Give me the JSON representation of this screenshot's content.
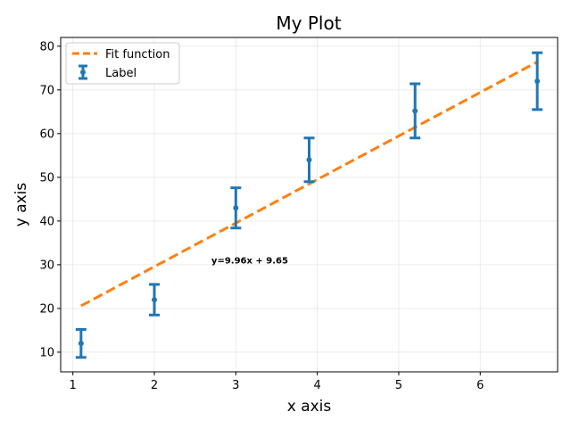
{
  "chart_data": {
    "type": "scatter",
    "title": "My Plot",
    "xlabel": "x axis",
    "ylabel": "y axis",
    "xlim": [
      0.85,
      6.95
    ],
    "ylim": [
      5.5,
      82
    ],
    "xticks": [
      1,
      2,
      3,
      4,
      5,
      6
    ],
    "yticks": [
      10,
      20,
      30,
      40,
      50,
      60,
      70,
      80
    ],
    "grid": true,
    "legend_position": "top-left",
    "series": [
      {
        "name": "Label",
        "kind": "errorbar",
        "color": "#1f77b4",
        "x": [
          1.1,
          2.0,
          3.0,
          3.9,
          5.2,
          6.7
        ],
        "y": [
          12.0,
          22.0,
          43.0,
          54.0,
          65.2,
          72.0
        ],
        "yerr": [
          3.2,
          3.5,
          4.6,
          5.0,
          6.2,
          6.5
        ]
      },
      {
        "name": "Fit function",
        "kind": "line",
        "style": "dashed",
        "color": "#ff7f0e",
        "x": [
          1.1,
          6.7
        ],
        "y": [
          20.6,
          76.4
        ]
      }
    ],
    "annotation": {
      "text": "y=9.96x + 9.65",
      "x": 2.7,
      "y": 30.3
    }
  }
}
